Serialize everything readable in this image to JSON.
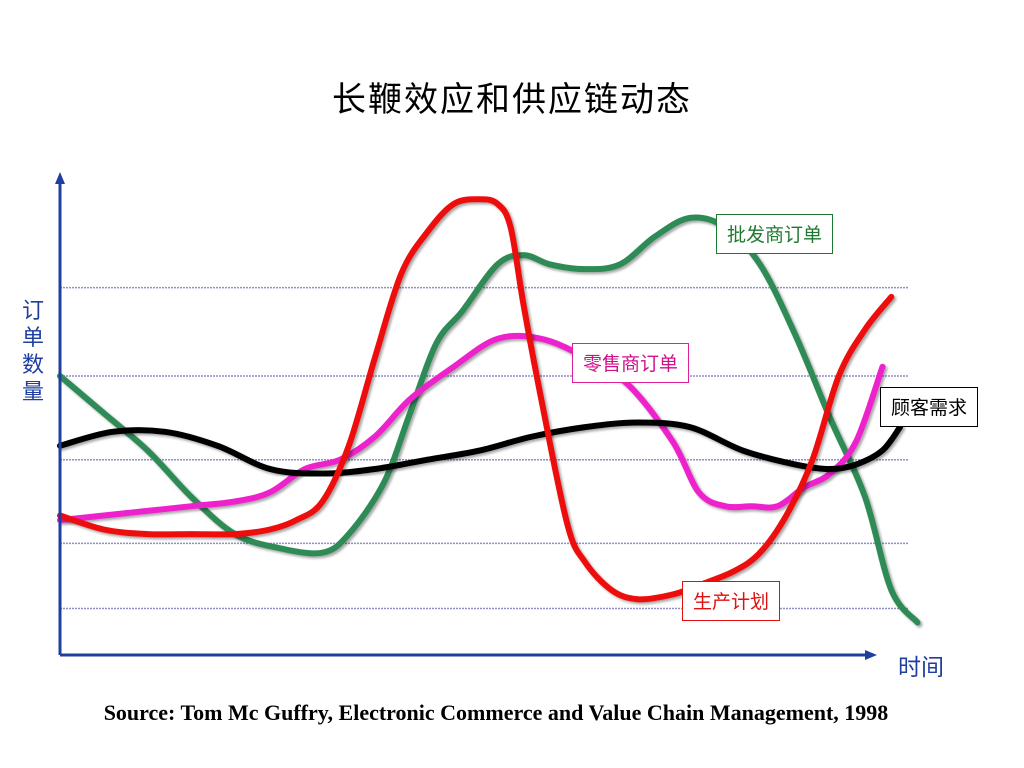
{
  "title": "长鞭效应和供应链动态",
  "source": "Source: Tom Mc Guffry, Electronic Commerce and Value Chain Management, 1998",
  "colors": {
    "axis": "#1f3fa0",
    "grid": "#8e8ec8",
    "wholesale": "#2e8b57",
    "retail": "#ee22cc",
    "customer": "#000000",
    "production": "#ee1111"
  },
  "chart_data": {
    "type": "line",
    "xlabel": "时间",
    "ylabel": "订单数量",
    "xlim": [
      0,
      100
    ],
    "ylim": [
      0,
      100
    ],
    "grid": true,
    "gridlines_y": [
      10,
      24,
      42,
      60,
      79
    ],
    "series": [
      {
        "name": "批发商订单",
        "key": "wholesale",
        "x": [
          0,
          5,
          10,
          15,
          20,
          25,
          30,
          33,
          37,
          40,
          43,
          46,
          50,
          53,
          56,
          60,
          64,
          68,
          72,
          76,
          80,
          84,
          88,
          92,
          95,
          98
        ],
        "y": [
          60,
          52,
          44,
          34,
          26,
          23,
          22,
          26,
          37,
          52,
          67,
          74,
          84,
          86,
          84,
          83,
          84,
          90,
          94,
          92,
          84,
          69,
          51,
          34,
          14,
          7
        ],
        "color": "#2e8b57"
      },
      {
        "name": "零售商订单",
        "key": "retail",
        "x": [
          0,
          5,
          10,
          15,
          20,
          24,
          28,
          32,
          36,
          40,
          45,
          50,
          55,
          60,
          65,
          70,
          73,
          76,
          79,
          82,
          85,
          88,
          91,
          94
        ],
        "y": [
          29,
          30,
          31,
          32,
          33,
          35,
          40,
          42,
          47,
          55,
          62,
          68,
          68,
          64,
          58,
          46,
          35,
          32,
          32,
          32,
          36,
          39,
          46,
          62
        ],
        "color": "#ee22cc"
      },
      {
        "name": "顾客需求",
        "key": "customer",
        "x": [
          0,
          6,
          12,
          18,
          24,
          30,
          36,
          42,
          48,
          54,
          60,
          66,
          72,
          78,
          84,
          88,
          91,
          94,
          96
        ],
        "y": [
          45,
          48,
          48,
          45,
          40,
          39,
          40,
          42,
          44,
          47,
          49,
          50,
          49,
          44,
          41,
          40,
          41,
          44,
          49
        ],
        "color": "#000000"
      },
      {
        "name": "生产计划",
        "key": "production",
        "x": [
          0,
          5,
          10,
          15,
          20,
          24,
          27,
          30,
          33,
          36,
          39,
          42,
          45,
          48,
          50,
          51.5,
          53,
          55,
          58,
          60,
          63,
          66,
          70,
          73,
          77,
          80,
          83,
          86,
          89,
          92,
          95
        ],
        "y": [
          30,
          27,
          26,
          26,
          26,
          27,
          29,
          33,
          45,
          64,
          82,
          91,
          97,
          98,
          97,
          92,
          75,
          55,
          28,
          20,
          14,
          12,
          13,
          15,
          18,
          22,
          30,
          42,
          60,
          70,
          77
        ],
        "color": "#ee1111"
      }
    ],
    "legend_placement": "inline-labels"
  }
}
